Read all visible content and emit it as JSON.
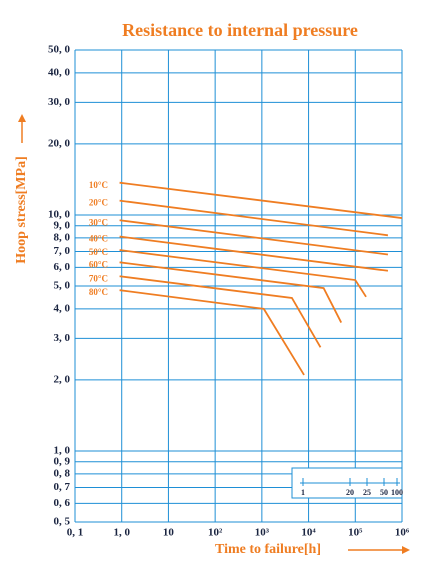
{
  "chart_data": {
    "type": "line",
    "title": "Resistance to internal pressure",
    "y_label": "Hoop stress[MPa]",
    "x_label": "Time to failure[h]",
    "log_x": true,
    "log_y": true,
    "grid": true,
    "xlim": [
      0.1,
      1000000
    ],
    "xticks": [
      {
        "value": 0.1,
        "label": "0, 1"
      },
      {
        "value": 1,
        "label": "1, 0"
      },
      10,
      {
        "value": 100,
        "label": "10²"
      },
      {
        "value": 1000,
        "label": "10³"
      },
      {
        "value": 10000,
        "label": "10⁴"
      },
      {
        "value": 100000,
        "label": "10⁵"
      },
      {
        "value": 1000000,
        "label": "10⁶"
      }
    ],
    "ylim": [
      0.5,
      50
    ],
    "yticks": [
      {
        "value": 50,
        "label": "50, 0"
      },
      {
        "value": 40,
        "label": "40, 0"
      },
      {
        "value": 30,
        "label": "30, 0"
      },
      {
        "value": 20,
        "label": "20, 0"
      },
      {
        "value": 10,
        "label": "10, 0"
      },
      {
        "value": 9,
        "label": "9, 0"
      },
      {
        "value": 8,
        "label": "8, 0"
      },
      {
        "value": 7,
        "label": "7, 0"
      },
      {
        "value": 6,
        "label": "6, 0"
      },
      {
        "value": 5,
        "label": "5, 0"
      },
      {
        "value": 4,
        "label": "4, 0"
      },
      {
        "value": 3,
        "label": "3, 0"
      },
      {
        "value": 2,
        "label": "2, 0"
      },
      {
        "value": 1,
        "label": "1, 0"
      },
      {
        "value": 0.9,
        "label": "0, 9"
      },
      {
        "value": 0.8,
        "label": "0, 8"
      },
      {
        "value": 0.7,
        "label": "0, 7"
      },
      {
        "value": 0.6,
        "label": "0, 6"
      },
      {
        "value": 0.5,
        "label": "0, 5"
      }
    ],
    "series": [
      {
        "name": "10°C",
        "color": "#ef7d22",
        "x": [
          0.9,
          1000000
        ],
        "values": [
          13.7,
          9.7
        ]
      },
      {
        "name": "20°C",
        "color": "#ef7d22",
        "x": [
          0.9,
          500000
        ],
        "values": [
          11.5,
          8.2
        ]
      },
      {
        "name": "30°C",
        "color": "#ef7d22",
        "x": [
          0.9,
          500000
        ],
        "values": [
          9.5,
          6.8
        ]
      },
      {
        "name": "40°C",
        "color": "#ef7d22",
        "x": [
          0.9,
          500000
        ],
        "values": [
          8.1,
          5.8
        ]
      },
      {
        "name": "50°C",
        "color": "#ef7d22",
        "x": [
          0.9,
          100000,
          170000
        ],
        "values": [
          7.1,
          5.3,
          4.5
        ]
      },
      {
        "name": "60°C",
        "color": "#ef7d22",
        "x": [
          0.9,
          21000,
          50000
        ],
        "values": [
          6.3,
          4.9,
          3.5
        ]
      },
      {
        "name": "70°C",
        "color": "#ef7d22",
        "x": [
          0.9,
          4400,
          18000
        ],
        "values": [
          5.5,
          4.45,
          2.75
        ]
      },
      {
        "name": "80°C",
        "color": "#ef7d22",
        "x": [
          0.9,
          1100,
          8000
        ],
        "values": [
          4.8,
          4.0,
          2.1
        ]
      }
    ],
    "inset_ticks": [
      1,
      20,
      25,
      50,
      100
    ]
  }
}
